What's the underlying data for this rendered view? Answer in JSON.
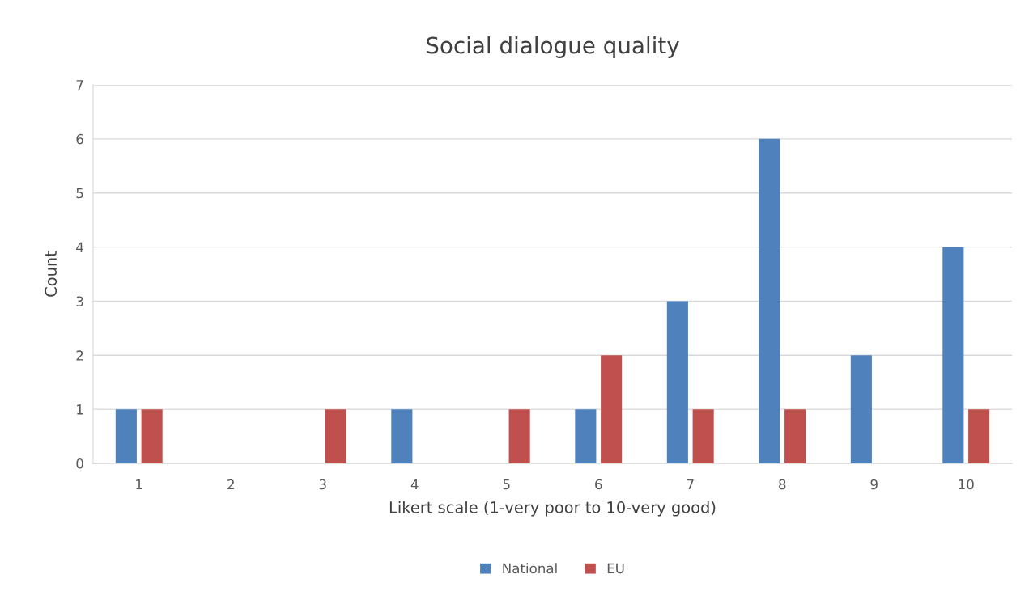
{
  "chart_data": {
    "type": "bar",
    "title": "Social dialogue quality",
    "xlabel": "Likert scale (1-very poor to 10-very good)",
    "ylabel": "Count",
    "categories": [
      "1",
      "2",
      "3",
      "4",
      "5",
      "6",
      "7",
      "8",
      "9",
      "10"
    ],
    "series": [
      {
        "name": "National",
        "color": "#4f81bd",
        "values": [
          1,
          0,
          0,
          1,
          0,
          1,
          3,
          6,
          2,
          4
        ]
      },
      {
        "name": "EU",
        "color": "#c0504d",
        "values": [
          1,
          0,
          1,
          0,
          1,
          2,
          1,
          1,
          0,
          1
        ]
      }
    ],
    "ylim": [
      0,
      7
    ],
    "yticks": [
      0,
      1,
      2,
      3,
      4,
      5,
      6,
      7
    ],
    "grid": "y",
    "legend": "bottom"
  }
}
